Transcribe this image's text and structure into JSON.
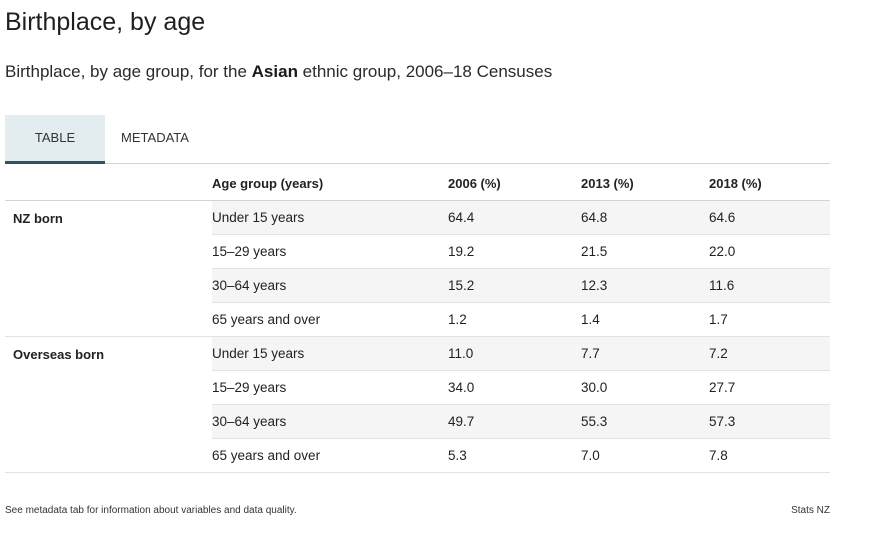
{
  "header": {
    "title": "Birthplace, by age",
    "subtitle_prefix": "Birthplace, by age group, for the ",
    "subtitle_bold": "Asian",
    "subtitle_suffix": " ethnic group, 2006–18 Censuses"
  },
  "tabs": [
    {
      "label": "TABLE",
      "active": true
    },
    {
      "label": "METADATA",
      "active": false
    }
  ],
  "table": {
    "columns": [
      "Age group (years)",
      "2006 (%)",
      "2013 (%)",
      "2018 (%)"
    ],
    "groups": [
      {
        "name": "NZ born",
        "rows": [
          {
            "age": "Under 15 years",
            "v2006": "64.4",
            "v2013": "64.8",
            "v2018": "64.6"
          },
          {
            "age": "15–29 years",
            "v2006": "19.2",
            "v2013": "21.5",
            "v2018": "22.0"
          },
          {
            "age": "30–64 years",
            "v2006": "15.2",
            "v2013": "12.3",
            "v2018": "11.6"
          },
          {
            "age": "65 years and over",
            "v2006": "1.2",
            "v2013": "1.4",
            "v2018": "1.7"
          }
        ]
      },
      {
        "name": "Overseas born",
        "rows": [
          {
            "age": "Under 15 years",
            "v2006": "11.0",
            "v2013": "7.7",
            "v2018": "7.2"
          },
          {
            "age": "15–29 years",
            "v2006": "34.0",
            "v2013": "30.0",
            "v2018": "27.7"
          },
          {
            "age": "30–64 years",
            "v2006": "49.7",
            "v2013": "55.3",
            "v2018": "57.3"
          },
          {
            "age": "65 years and over",
            "v2006": "5.3",
            "v2013": "7.0",
            "v2018": "7.8"
          }
        ]
      }
    ]
  },
  "footer": {
    "note": "See metadata tab for information about variables and data quality.",
    "source": "Stats NZ"
  },
  "colors": {
    "active_tab_bg": "#e3ecef",
    "active_tab_border": "#2c5560",
    "row_stripe": "#f5f5f5"
  }
}
